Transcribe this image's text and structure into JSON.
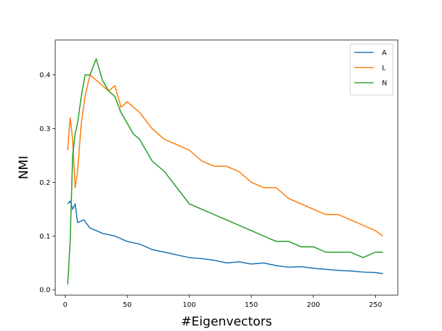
{
  "chart_data": {
    "type": "line",
    "title": "",
    "xlabel": "#Eigenvectors",
    "ylabel": "NMI",
    "xlim": [
      -8,
      268
    ],
    "ylim": [
      -0.01,
      0.465
    ],
    "xticks": [
      0,
      50,
      100,
      150,
      200,
      250
    ],
    "xtick_labels": [
      "0",
      "50",
      "100",
      "150",
      "200",
      "250"
    ],
    "yticks": [
      0.0,
      0.1,
      0.2,
      0.3,
      0.4
    ],
    "ytick_labels": [
      "0.0",
      "0.1",
      "0.2",
      "0.3",
      "0.4"
    ],
    "grid": false,
    "legend_position": "top-right",
    "x_range": [
      2,
      256
    ],
    "series": [
      {
        "name": "A",
        "color": "#1f77b4",
        "x": [
          2,
          4,
          6,
          8,
          10,
          15,
          20,
          25,
          30,
          40,
          50,
          60,
          70,
          80,
          90,
          100,
          110,
          120,
          130,
          140,
          150,
          160,
          170,
          180,
          190,
          200,
          210,
          220,
          230,
          240,
          250,
          256
        ],
        "y": [
          0.16,
          0.165,
          0.15,
          0.16,
          0.125,
          0.13,
          0.115,
          0.11,
          0.105,
          0.1,
          0.09,
          0.085,
          0.075,
          0.07,
          0.065,
          0.06,
          0.058,
          0.055,
          0.05,
          0.052,
          0.048,
          0.05,
          0.045,
          0.042,
          0.043,
          0.04,
          0.038,
          0.036,
          0.035,
          0.033,
          0.032,
          0.03
        ]
      },
      {
        "name": "L",
        "color": "#ff7f0e",
        "x": [
          2,
          4,
          6,
          8,
          10,
          13,
          16,
          20,
          25,
          30,
          35,
          40,
          45,
          50,
          60,
          70,
          80,
          90,
          100,
          110,
          120,
          130,
          140,
          150,
          160,
          170,
          180,
          190,
          200,
          210,
          220,
          230,
          240,
          250,
          256
        ],
        "y": [
          0.26,
          0.32,
          0.28,
          0.19,
          0.22,
          0.31,
          0.36,
          0.4,
          0.39,
          0.38,
          0.37,
          0.38,
          0.34,
          0.35,
          0.33,
          0.3,
          0.28,
          0.27,
          0.26,
          0.24,
          0.23,
          0.23,
          0.22,
          0.2,
          0.19,
          0.19,
          0.17,
          0.16,
          0.15,
          0.14,
          0.14,
          0.13,
          0.12,
          0.11,
          0.1
        ]
      },
      {
        "name": "N",
        "color": "#2ca02c",
        "x": [
          2,
          4,
          6,
          8,
          10,
          13,
          16,
          20,
          25,
          30,
          35,
          40,
          45,
          50,
          55,
          60,
          70,
          80,
          90,
          100,
          110,
          120,
          130,
          140,
          150,
          160,
          170,
          180,
          190,
          200,
          210,
          220,
          230,
          240,
          250,
          256
        ],
        "y": [
          0.01,
          0.09,
          0.25,
          0.29,
          0.31,
          0.36,
          0.4,
          0.4,
          0.43,
          0.39,
          0.37,
          0.36,
          0.33,
          0.31,
          0.29,
          0.28,
          0.24,
          0.22,
          0.19,
          0.16,
          0.15,
          0.14,
          0.13,
          0.12,
          0.11,
          0.1,
          0.09,
          0.09,
          0.08,
          0.08,
          0.07,
          0.07,
          0.07,
          0.06,
          0.07,
          0.07
        ]
      }
    ]
  }
}
